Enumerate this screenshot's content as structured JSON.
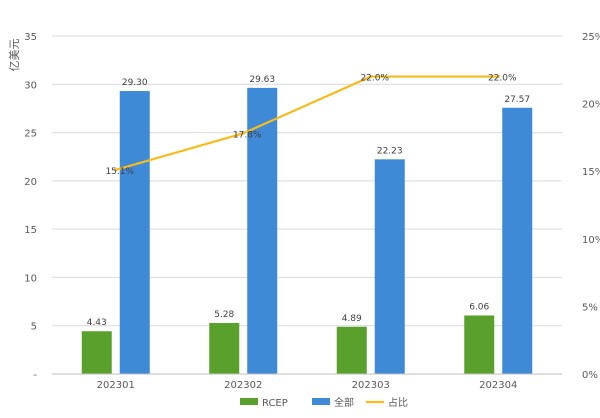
{
  "chart_data": {
    "type": "bar",
    "categories": [
      "202301",
      "202302",
      "202303",
      "202304"
    ],
    "ylabel": "亿美元",
    "ylim": [
      0,
      35
    ],
    "yticks": [
      "-",
      "5",
      "10",
      "15",
      "20",
      "25",
      "30",
      "35"
    ],
    "y2lim": [
      0,
      25
    ],
    "y2ticks": [
      "0%",
      "5%",
      "10%",
      "15%",
      "20%",
      "25%"
    ],
    "grid": true,
    "legend_position": "bottom",
    "series": [
      {
        "name": "RCEP",
        "kind": "bar",
        "color": "#5aa02c",
        "values": [
          4.43,
          5.28,
          4.89,
          6.06
        ],
        "labels": [
          "4.43",
          "5.28",
          "4.89",
          "6.06"
        ]
      },
      {
        "name": "全部",
        "kind": "bar",
        "color": "#3f8ad6",
        "values": [
          29.3,
          29.63,
          22.23,
          27.57
        ],
        "labels": [
          "29.30",
          "29.63",
          "22.23",
          "27.57"
        ]
      },
      {
        "name": "占比",
        "kind": "line",
        "axis": "right",
        "color": "#f5bc1c",
        "values": [
          15.1,
          17.8,
          22.0,
          22.0
        ],
        "labels": [
          "15.1%",
          "17.8%",
          "22.0%",
          "22.0%"
        ]
      }
    ]
  }
}
